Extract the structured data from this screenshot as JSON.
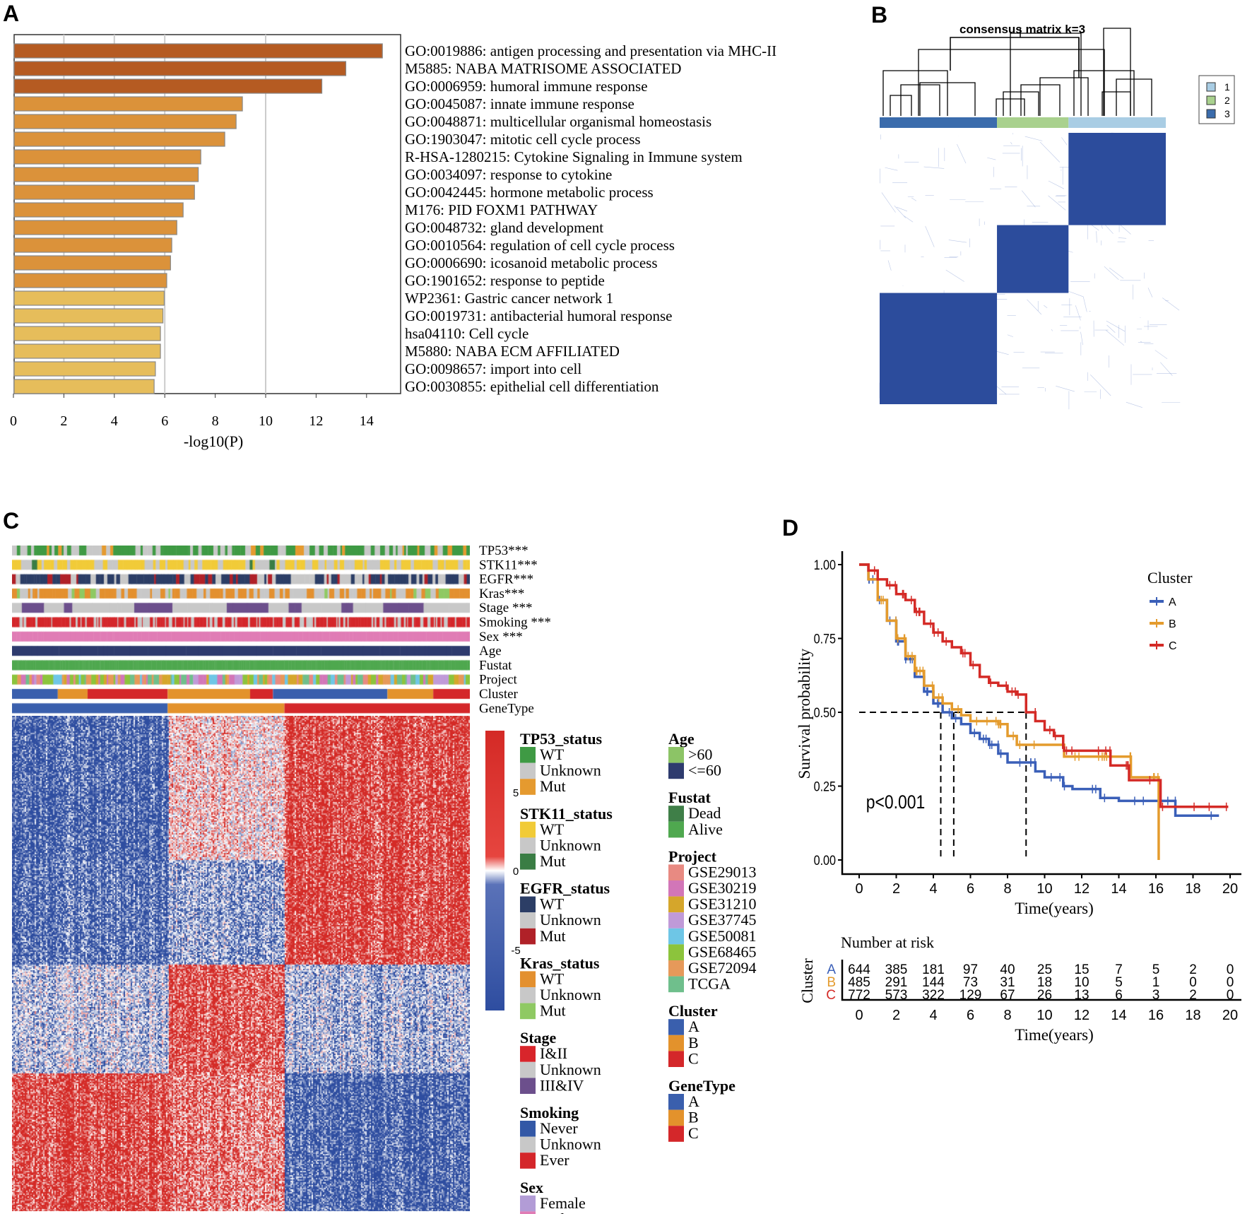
{
  "panels": {
    "a": "A",
    "b": "B",
    "c": "C",
    "d": "D"
  },
  "chart_data": [
    {
      "type": "bar",
      "orientation": "horizontal",
      "xlabel": "-log10(P)",
      "xlim": [
        0,
        15.3
      ],
      "xticks": [
        "0",
        "2",
        "4",
        "6",
        "8",
        "10",
        "12",
        "14"
      ],
      "grid": true,
      "categories": [
        "GO:0019886: antigen processing and presentation via MHC-II",
        "M5885: NABA MATRISOME ASSOCIATED",
        "GO:0006959: humoral immune response",
        "GO:0045087: innate immune response",
        "GO:0048871: multicellular organismal homeostasis",
        "GO:1903047: mitotic cell cycle process",
        "R-HSA-1280215: Cytokine Signaling in Immune system",
        "GO:0034097: response to cytokine",
        "GO:0042445: hormone metabolic process",
        "M176: PID FOXM1 PATHWAY",
        "GO:0048732: gland development",
        "GO:0010564: regulation of cell cycle process",
        "GO:0006690: icosanoid metabolic process",
        "GO:1901652: response to peptide",
        "WP2361: Gastric cancer network 1",
        "GO:0019731: antibacterial humoral response",
        "hsa04110: Cell cycle",
        "M5880: NABA ECM AFFILIATED",
        "GO:0098657: import into cell",
        "GO:0030855: epithelial cell differentiation"
      ],
      "values": [
        14.6,
        13.15,
        12.2,
        9.05,
        8.8,
        8.35,
        7.4,
        7.3,
        7.15,
        6.7,
        6.45,
        6.25,
        6.2,
        6.05,
        5.95,
        5.9,
        5.8,
        5.8,
        5.6,
        5.55
      ],
      "colors": [
        "#b55b22",
        "#b55b22",
        "#b55b22",
        "#db923a",
        "#db923a",
        "#db923a",
        "#db923a",
        "#db923a",
        "#db923a",
        "#db923a",
        "#db923a",
        "#db923a",
        "#db923a",
        "#db923a",
        "#e6bd5b",
        "#e6bd5b",
        "#e6bd5b",
        "#e6bd5b",
        "#e6bd5b",
        "#e6bd5b"
      ]
    },
    {
      "type": "heatmap",
      "title": "consensus matrix k=3",
      "clusters": [
        {
          "label": "1",
          "color": "#a9cde4",
          "fraction": 0.34
        },
        {
          "label": "2",
          "color": "#a9d18e",
          "fraction": 0.25
        },
        {
          "label": "3",
          "color": "#3b6cac",
          "fraction": 0.41
        }
      ],
      "column_order": [
        "3",
        "2",
        "1"
      ],
      "fill_color": "#2c4c9c"
    },
    {
      "type": "heatmap",
      "annotation_rows": [
        "TP53***",
        "STK11***",
        "EGFR***",
        "Kras***",
        "Stage ***",
        "Smoking  ***",
        "Sex ***",
        "Age",
        "Fustat",
        "Project",
        "Cluster",
        "GeneType"
      ],
      "colorbar": {
        "ticks": [
          "5",
          "0",
          "-5"
        ],
        "range": [
          -7,
          7
        ],
        "low": "#2e4da0",
        "mid": "#ffffff",
        "high": "#d42a26"
      },
      "genetype_fractions": {
        "A": 0.34,
        "B": 0.255,
        "C": 0.405
      },
      "legend_col1": [
        {
          "title": "TP53_status",
          "items": [
            {
              "label": "WT",
              "color": "#3f9a44"
            },
            {
              "label": "Unknown",
              "color": "#c8c8c8"
            },
            {
              "label": "Mut",
              "color": "#e59a2f"
            }
          ]
        },
        {
          "title": "STK11_status",
          "items": [
            {
              "label": "WT",
              "color": "#f1cb38"
            },
            {
              "label": "Unknown",
              "color": "#c8c8c8"
            },
            {
              "label": "Mut",
              "color": "#3a7d44"
            }
          ]
        },
        {
          "title": "EGFR_status",
          "items": [
            {
              "label": "WT",
              "color": "#2c3e66"
            },
            {
              "label": "Unknown",
              "color": "#c8c8c8"
            },
            {
              "label": "Mut",
              "color": "#b02128"
            }
          ]
        },
        {
          "title": "Kras_status",
          "items": [
            {
              "label": "WT",
              "color": "#e3902f"
            },
            {
              "label": "Unknown",
              "color": "#c8c8c8"
            },
            {
              "label": "Mut",
              "color": "#8fc963"
            }
          ]
        },
        {
          "title": "Stage",
          "items": [
            {
              "label": "I&II",
              "color": "#d8252b"
            },
            {
              "label": "Unknown",
              "color": "#c8c8c8"
            },
            {
              "label": "III&IV",
              "color": "#6c4f8c"
            }
          ]
        },
        {
          "title": "Smoking",
          "items": [
            {
              "label": "Never",
              "color": "#3358a6"
            },
            {
              "label": "Unknown",
              "color": "#c8c8c8"
            },
            {
              "label": "Ever",
              "color": "#d4262a"
            }
          ]
        },
        {
          "title": "Sex",
          "items": [
            {
              "label": "Female",
              "color": "#b29cd6"
            },
            {
              "label": "Male",
              "color": "#e07cb5"
            }
          ]
        }
      ],
      "legend_col2": [
        {
          "title": "Age",
          "items": [
            {
              "label": ">60",
              "color": "#8cc466"
            },
            {
              "label": "<=60",
              "color": "#2e3b6e"
            }
          ]
        },
        {
          "title": "Fustat",
          "items": [
            {
              "label": "Dead",
              "color": "#3f7f48"
            },
            {
              "label": "Alive",
              "color": "#4fa84f"
            }
          ]
        },
        {
          "title": "Project",
          "items": [
            {
              "label": "GSE29013",
              "color": "#e88a82"
            },
            {
              "label": "GSE30219",
              "color": "#d276b8"
            },
            {
              "label": "GSE31210",
              "color": "#d5a62b"
            },
            {
              "label": "GSE37745",
              "color": "#c09ad8"
            },
            {
              "label": "GSE50081",
              "color": "#6ec6e6"
            },
            {
              "label": "GSE68465",
              "color": "#8cc43c"
            },
            {
              "label": "GSE72094",
              "color": "#e6995a"
            },
            {
              "label": "TCGA",
              "color": "#6fbf8c"
            }
          ]
        },
        {
          "title": "Cluster",
          "items": [
            {
              "label": "A",
              "color": "#3a5fad"
            },
            {
              "label": "B",
              "color": "#e3922c"
            },
            {
              "label": "C",
              "color": "#d4272a"
            }
          ]
        },
        {
          "title": "GeneType",
          "items": [
            {
              "label": "A",
              "color": "#3a5fad"
            },
            {
              "label": "B",
              "color": "#e3922c"
            },
            {
              "label": "C",
              "color": "#d4272a"
            }
          ]
        }
      ]
    },
    {
      "type": "line",
      "subtype": "kaplan-meier",
      "xlabel": "Time(years)",
      "ylabel": "Survival probability",
      "xlim": [
        0,
        20
      ],
      "ylim": [
        0,
        1
      ],
      "xticks": [
        "0",
        "2",
        "4",
        "6",
        "8",
        "10",
        "12",
        "14",
        "16",
        "18",
        "20"
      ],
      "yticks": [
        "0.00",
        "0.25",
        "0.50",
        "0.75",
        "1.00"
      ],
      "annotation": "p<0.001",
      "median_survival": [
        4.4,
        5.1,
        9.0
      ],
      "legend": {
        "title": "Cluster",
        "placement": "right"
      },
      "series": [
        {
          "name": "A",
          "color": "#3a5fb8",
          "x": [
            0,
            0.5,
            1,
            1.5,
            2,
            2.5,
            3,
            3.5,
            4,
            4.5,
            5,
            5.5,
            6,
            6.5,
            7,
            7.5,
            8,
            9,
            9.5,
            10,
            11,
            11.5,
            12.5,
            13,
            14,
            15,
            16,
            17,
            17.05,
            19.4
          ],
          "y": [
            1,
            0.95,
            0.88,
            0.81,
            0.74,
            0.68,
            0.62,
            0.57,
            0.53,
            0.5,
            0.48,
            0.46,
            0.43,
            0.41,
            0.39,
            0.36,
            0.33,
            0.33,
            0.3,
            0.28,
            0.25,
            0.24,
            0.24,
            0.21,
            0.2,
            0.2,
            0.2,
            0.2,
            0.15,
            0.15
          ]
        },
        {
          "name": "B",
          "color": "#e49b2d",
          "x": [
            0,
            0.5,
            1,
            1.5,
            2,
            2.5,
            3,
            3.5,
            4,
            4.5,
            5,
            5.5,
            6,
            6.5,
            7,
            7.5,
            8,
            8.5,
            9,
            11,
            11.05,
            13,
            14.6,
            14.65,
            16.1,
            16.15
          ],
          "y": [
            1,
            0.95,
            0.88,
            0.81,
            0.75,
            0.69,
            0.64,
            0.59,
            0.55,
            0.53,
            0.51,
            0.49,
            0.47,
            0.47,
            0.47,
            0.46,
            0.42,
            0.39,
            0.39,
            0.39,
            0.35,
            0.35,
            0.35,
            0.28,
            0.28,
            0
          ]
        },
        {
          "name": "C",
          "color": "#d42a26",
          "x": [
            0,
            0.5,
            1,
            1.5,
            2,
            2.5,
            3,
            3.5,
            4,
            4.5,
            5,
            5.5,
            6,
            6.5,
            7,
            7.5,
            8,
            8.5,
            9,
            9.5,
            10,
            10.5,
            11,
            11.05,
            13.5,
            13.55,
            14.5,
            14.55,
            16.2,
            16.25,
            19.9
          ],
          "y": [
            1,
            0.98,
            0.95,
            0.93,
            0.9,
            0.88,
            0.84,
            0.8,
            0.77,
            0.74,
            0.72,
            0.7,
            0.66,
            0.62,
            0.6,
            0.59,
            0.57,
            0.56,
            0.5,
            0.47,
            0.44,
            0.42,
            0.38,
            0.37,
            0.37,
            0.32,
            0.32,
            0.27,
            0.27,
            0.18,
            0.18
          ]
        }
      ],
      "risk_table": {
        "title": "Number at risk",
        "ylabel": "Cluster",
        "xlabel": "Time(years)",
        "rows": [
          {
            "group": "A",
            "color": "#3a5fb8",
            "values": [
              "644",
              "385",
              "181",
              "97",
              "40",
              "25",
              "15",
              "7",
              "5",
              "2",
              "0"
            ]
          },
          {
            "group": "B",
            "color": "#e49b2d",
            "values": [
              "485",
              "291",
              "144",
              "73",
              "31",
              "18",
              "10",
              "5",
              "1",
              "0",
              "0"
            ]
          },
          {
            "group": "C",
            "color": "#d42a26",
            "values": [
              "772",
              "573",
              "322",
              "129",
              "67",
              "26",
              "13",
              "6",
              "3",
              "2",
              "0"
            ]
          }
        ]
      }
    }
  ]
}
